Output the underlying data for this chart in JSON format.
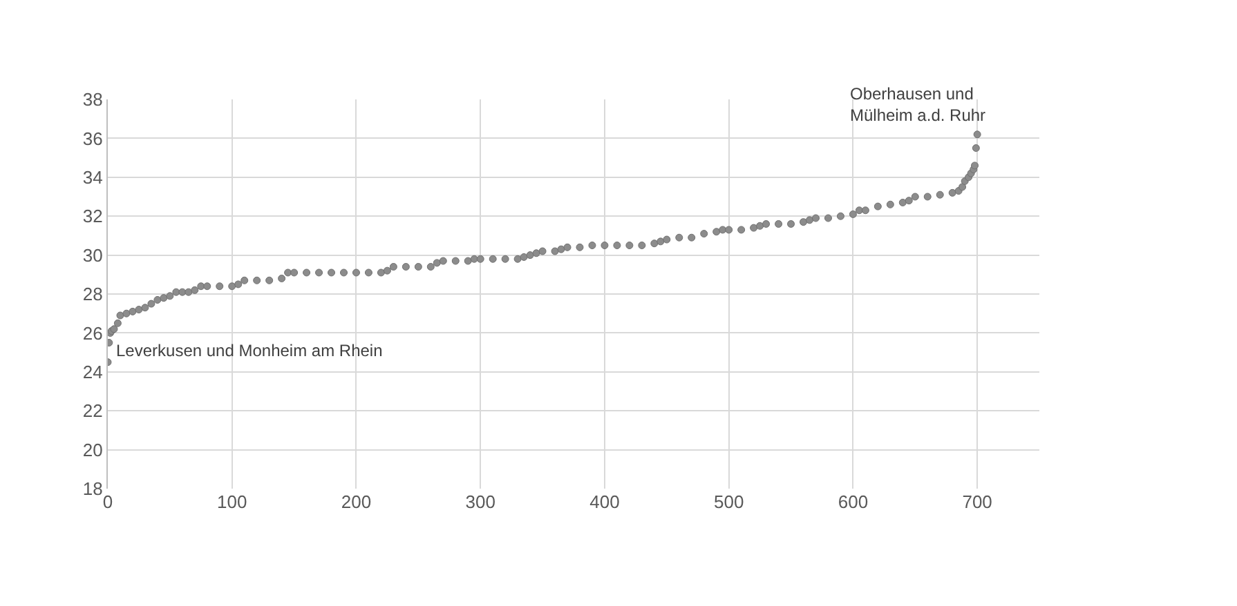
{
  "chart_data": {
    "type": "scatter",
    "x": [
      0,
      1,
      2,
      3,
      5,
      8,
      10,
      15,
      20,
      25,
      30,
      35,
      40,
      45,
      50,
      55,
      60,
      65,
      70,
      75,
      80,
      90,
      100,
      105,
      110,
      120,
      130,
      140,
      145,
      150,
      160,
      170,
      180,
      190,
      200,
      210,
      220,
      225,
      230,
      240,
      250,
      260,
      265,
      270,
      280,
      290,
      295,
      300,
      310,
      320,
      330,
      335,
      340,
      345,
      350,
      360,
      365,
      370,
      380,
      390,
      400,
      410,
      420,
      430,
      440,
      445,
      450,
      460,
      470,
      480,
      490,
      495,
      500,
      510,
      520,
      525,
      530,
      540,
      550,
      560,
      565,
      570,
      580,
      590,
      600,
      605,
      610,
      620,
      630,
      640,
      645,
      650,
      660,
      670,
      680,
      685,
      688,
      690,
      693,
      695,
      697,
      698,
      699,
      700
    ],
    "series": [
      {
        "color": "#8c8c8c",
        "values": [
          24.5,
          25.5,
          26.0,
          26.1,
          26.2,
          26.5,
          26.9,
          27.0,
          27.1,
          27.2,
          27.3,
          27.5,
          27.7,
          27.8,
          27.9,
          28.1,
          28.1,
          28.1,
          28.2,
          28.4,
          28.4,
          28.4,
          28.4,
          28.5,
          28.7,
          28.7,
          28.7,
          28.8,
          29.1,
          29.1,
          29.1,
          29.1,
          29.1,
          29.1,
          29.1,
          29.1,
          29.1,
          29.2,
          29.4,
          29.4,
          29.4,
          29.4,
          29.6,
          29.7,
          29.7,
          29.7,
          29.8,
          29.8,
          29.8,
          29.8,
          29.8,
          29.9,
          30.0,
          30.1,
          30.2,
          30.2,
          30.3,
          30.4,
          30.4,
          30.5,
          30.5,
          30.5,
          30.5,
          30.5,
          30.6,
          30.7,
          30.8,
          30.9,
          30.9,
          31.1,
          31.2,
          31.3,
          31.3,
          31.3,
          31.4,
          31.5,
          31.6,
          31.6,
          31.6,
          31.7,
          31.8,
          31.9,
          31.9,
          32.0,
          32.1,
          32.3,
          32.3,
          32.5,
          32.6,
          32.7,
          32.8,
          33.0,
          33.0,
          33.1,
          33.2,
          33.3,
          33.5,
          33.8,
          34.0,
          34.2,
          34.4,
          34.6,
          35.5,
          36.2
        ]
      }
    ],
    "xlim": [
      0,
      750
    ],
    "xticks": [
      0,
      100,
      200,
      300,
      400,
      500,
      600,
      700
    ],
    "ylim": [
      18,
      38
    ],
    "yticks": [
      18,
      20,
      22,
      24,
      26,
      28,
      30,
      32,
      34,
      36,
      38
    ],
    "grid": true,
    "marker": "circle",
    "annotations": [
      {
        "text": "Leverkusen und Monheim am Rhein",
        "x": 0,
        "y": 24.5
      },
      {
        "text": "Oberhausen und\nMülheim a.d. Ruhr",
        "x": 700,
        "y": 36.2
      }
    ]
  }
}
